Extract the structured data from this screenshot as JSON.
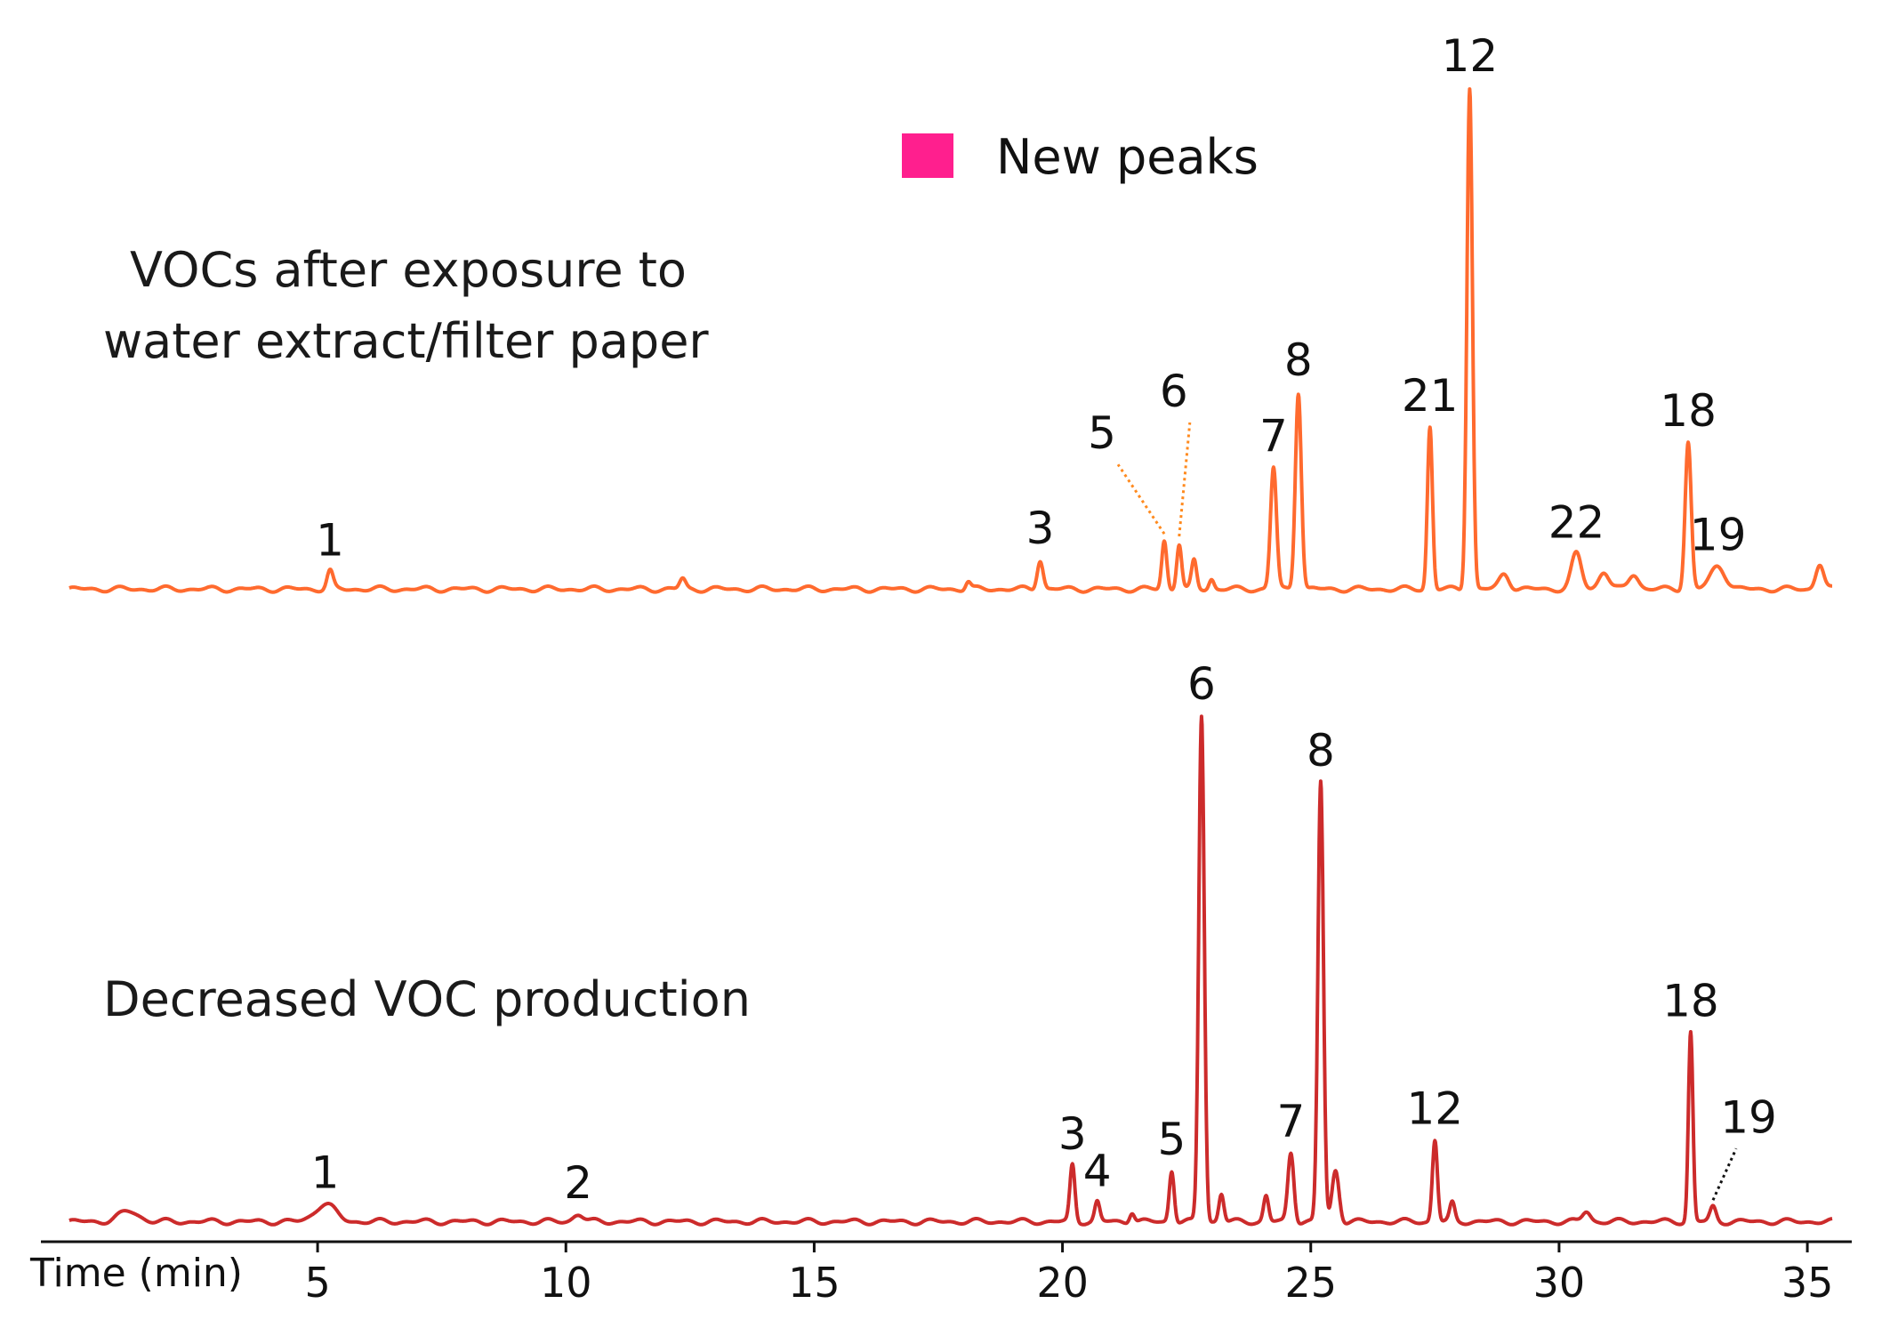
{
  "chart_data": {
    "type": "line",
    "title": "",
    "xlabel": "Time (min)",
    "xlim": [
      -0.5,
      35.5
    ],
    "xticks": [
      5,
      10,
      15,
      20,
      25,
      30,
      35
    ],
    "tick_labels": [
      "5",
      "10",
      "15",
      "20",
      "25",
      "30",
      "35"
    ],
    "legend": {
      "label": "New peaks",
      "color": "#ff1f8e",
      "placement": "top-center"
    },
    "colors": {
      "top": "#ff6a2e",
      "bottom": "#cc2b2b",
      "new_peak": "#ff1f8e",
      "leader_top": "#ff8a1e",
      "leader_bottom": "#111111"
    },
    "series": [
      {
        "id": "top",
        "name_lines": [
          "VOCs after exposure to",
          "water extract/filter paper"
        ],
        "ylim": [
          0,
          100
        ],
        "baseline": 1,
        "peaks": [
          {
            "label": "1",
            "t": 5.25,
            "h": 3.5,
            "w": 0.06
          },
          {
            "label": "",
            "t": 12.35,
            "h": 2.0,
            "w": 0.06
          },
          {
            "label": "",
            "t": 18.1,
            "h": 1.5,
            "w": 0.05
          },
          {
            "label": "3",
            "t": 19.55,
            "h": 5.8,
            "w": 0.06
          },
          {
            "label": "5",
            "t": 22.05,
            "h": 9.5,
            "w": 0.05,
            "leader": true
          },
          {
            "label": "6",
            "t": 22.35,
            "h": 9.0,
            "w": 0.05,
            "leader": true
          },
          {
            "label": "",
            "t": 22.65,
            "h": 5.5,
            "w": 0.05
          },
          {
            "label": "",
            "t": 23.0,
            "h": 2.0,
            "w": 0.05
          },
          {
            "label": "7",
            "t": 24.25,
            "h": 24.0,
            "w": 0.06
          },
          {
            "label": "8",
            "t": 24.75,
            "h": 39.0,
            "w": 0.06
          },
          {
            "label": "21",
            "t": 27.4,
            "h": 32.0,
            "w": 0.05,
            "new": true
          },
          {
            "label": "12",
            "t": 28.2,
            "h": 99.0,
            "w": 0.055
          },
          {
            "label": "",
            "t": 28.9,
            "h": 3.0,
            "w": 0.1
          },
          {
            "label": "22",
            "t": 30.35,
            "h": 7.0,
            "w": 0.1,
            "new": true
          },
          {
            "label": "",
            "t": 30.9,
            "h": 3.5,
            "w": 0.1
          },
          {
            "label": "",
            "t": 31.5,
            "h": 3.0,
            "w": 0.1
          },
          {
            "label": "18",
            "t": 32.6,
            "h": 29.0,
            "w": 0.06
          },
          {
            "label": "19",
            "t": 33.2,
            "h": 4.5,
            "w": 0.15
          },
          {
            "label": "",
            "t": 35.25,
            "h": 5.0,
            "w": 0.08
          }
        ]
      },
      {
        "id": "bottom",
        "name_lines": [
          "Decreased VOC production"
        ],
        "ylim": [
          0,
          100
        ],
        "baseline": 0.8,
        "peaks": [
          {
            "label": "",
            "t": 1.2,
            "h": 2.0,
            "w": 0.2
          },
          {
            "label": "1",
            "t": 5.15,
            "h": 3.5,
            "w": 0.2
          },
          {
            "label": "2",
            "t": 10.25,
            "h": 1.5,
            "w": 0.1
          },
          {
            "label": "3",
            "t": 20.2,
            "h": 11.0,
            "w": 0.05
          },
          {
            "label": "4",
            "t": 20.7,
            "h": 3.8,
            "w": 0.05
          },
          {
            "label": "",
            "t": 21.4,
            "h": 2.0,
            "w": 0.05
          },
          {
            "label": "5",
            "t": 22.2,
            "h": 10.0,
            "w": 0.05
          },
          {
            "label": "6",
            "t": 22.8,
            "h": 99.0,
            "w": 0.055
          },
          {
            "label": "",
            "t": 23.2,
            "h": 5.5,
            "w": 0.05
          },
          {
            "label": "",
            "t": 24.1,
            "h": 5.0,
            "w": 0.05
          },
          {
            "label": "7",
            "t": 24.6,
            "h": 13.5,
            "w": 0.06
          },
          {
            "label": "8",
            "t": 25.2,
            "h": 86.0,
            "w": 0.055
          },
          {
            "label": "",
            "t": 25.5,
            "h": 10.0,
            "w": 0.07
          },
          {
            "label": "12",
            "t": 27.5,
            "h": 16.0,
            "w": 0.05
          },
          {
            "label": "",
            "t": 27.85,
            "h": 3.5,
            "w": 0.05
          },
          {
            "label": "",
            "t": 30.55,
            "h": 2.0,
            "w": 0.08
          },
          {
            "label": "18",
            "t": 32.65,
            "h": 37.0,
            "w": 0.045
          },
          {
            "label": "19",
            "t": 33.1,
            "h": 2.8,
            "w": 0.06,
            "leader": true
          }
        ]
      }
    ]
  }
}
